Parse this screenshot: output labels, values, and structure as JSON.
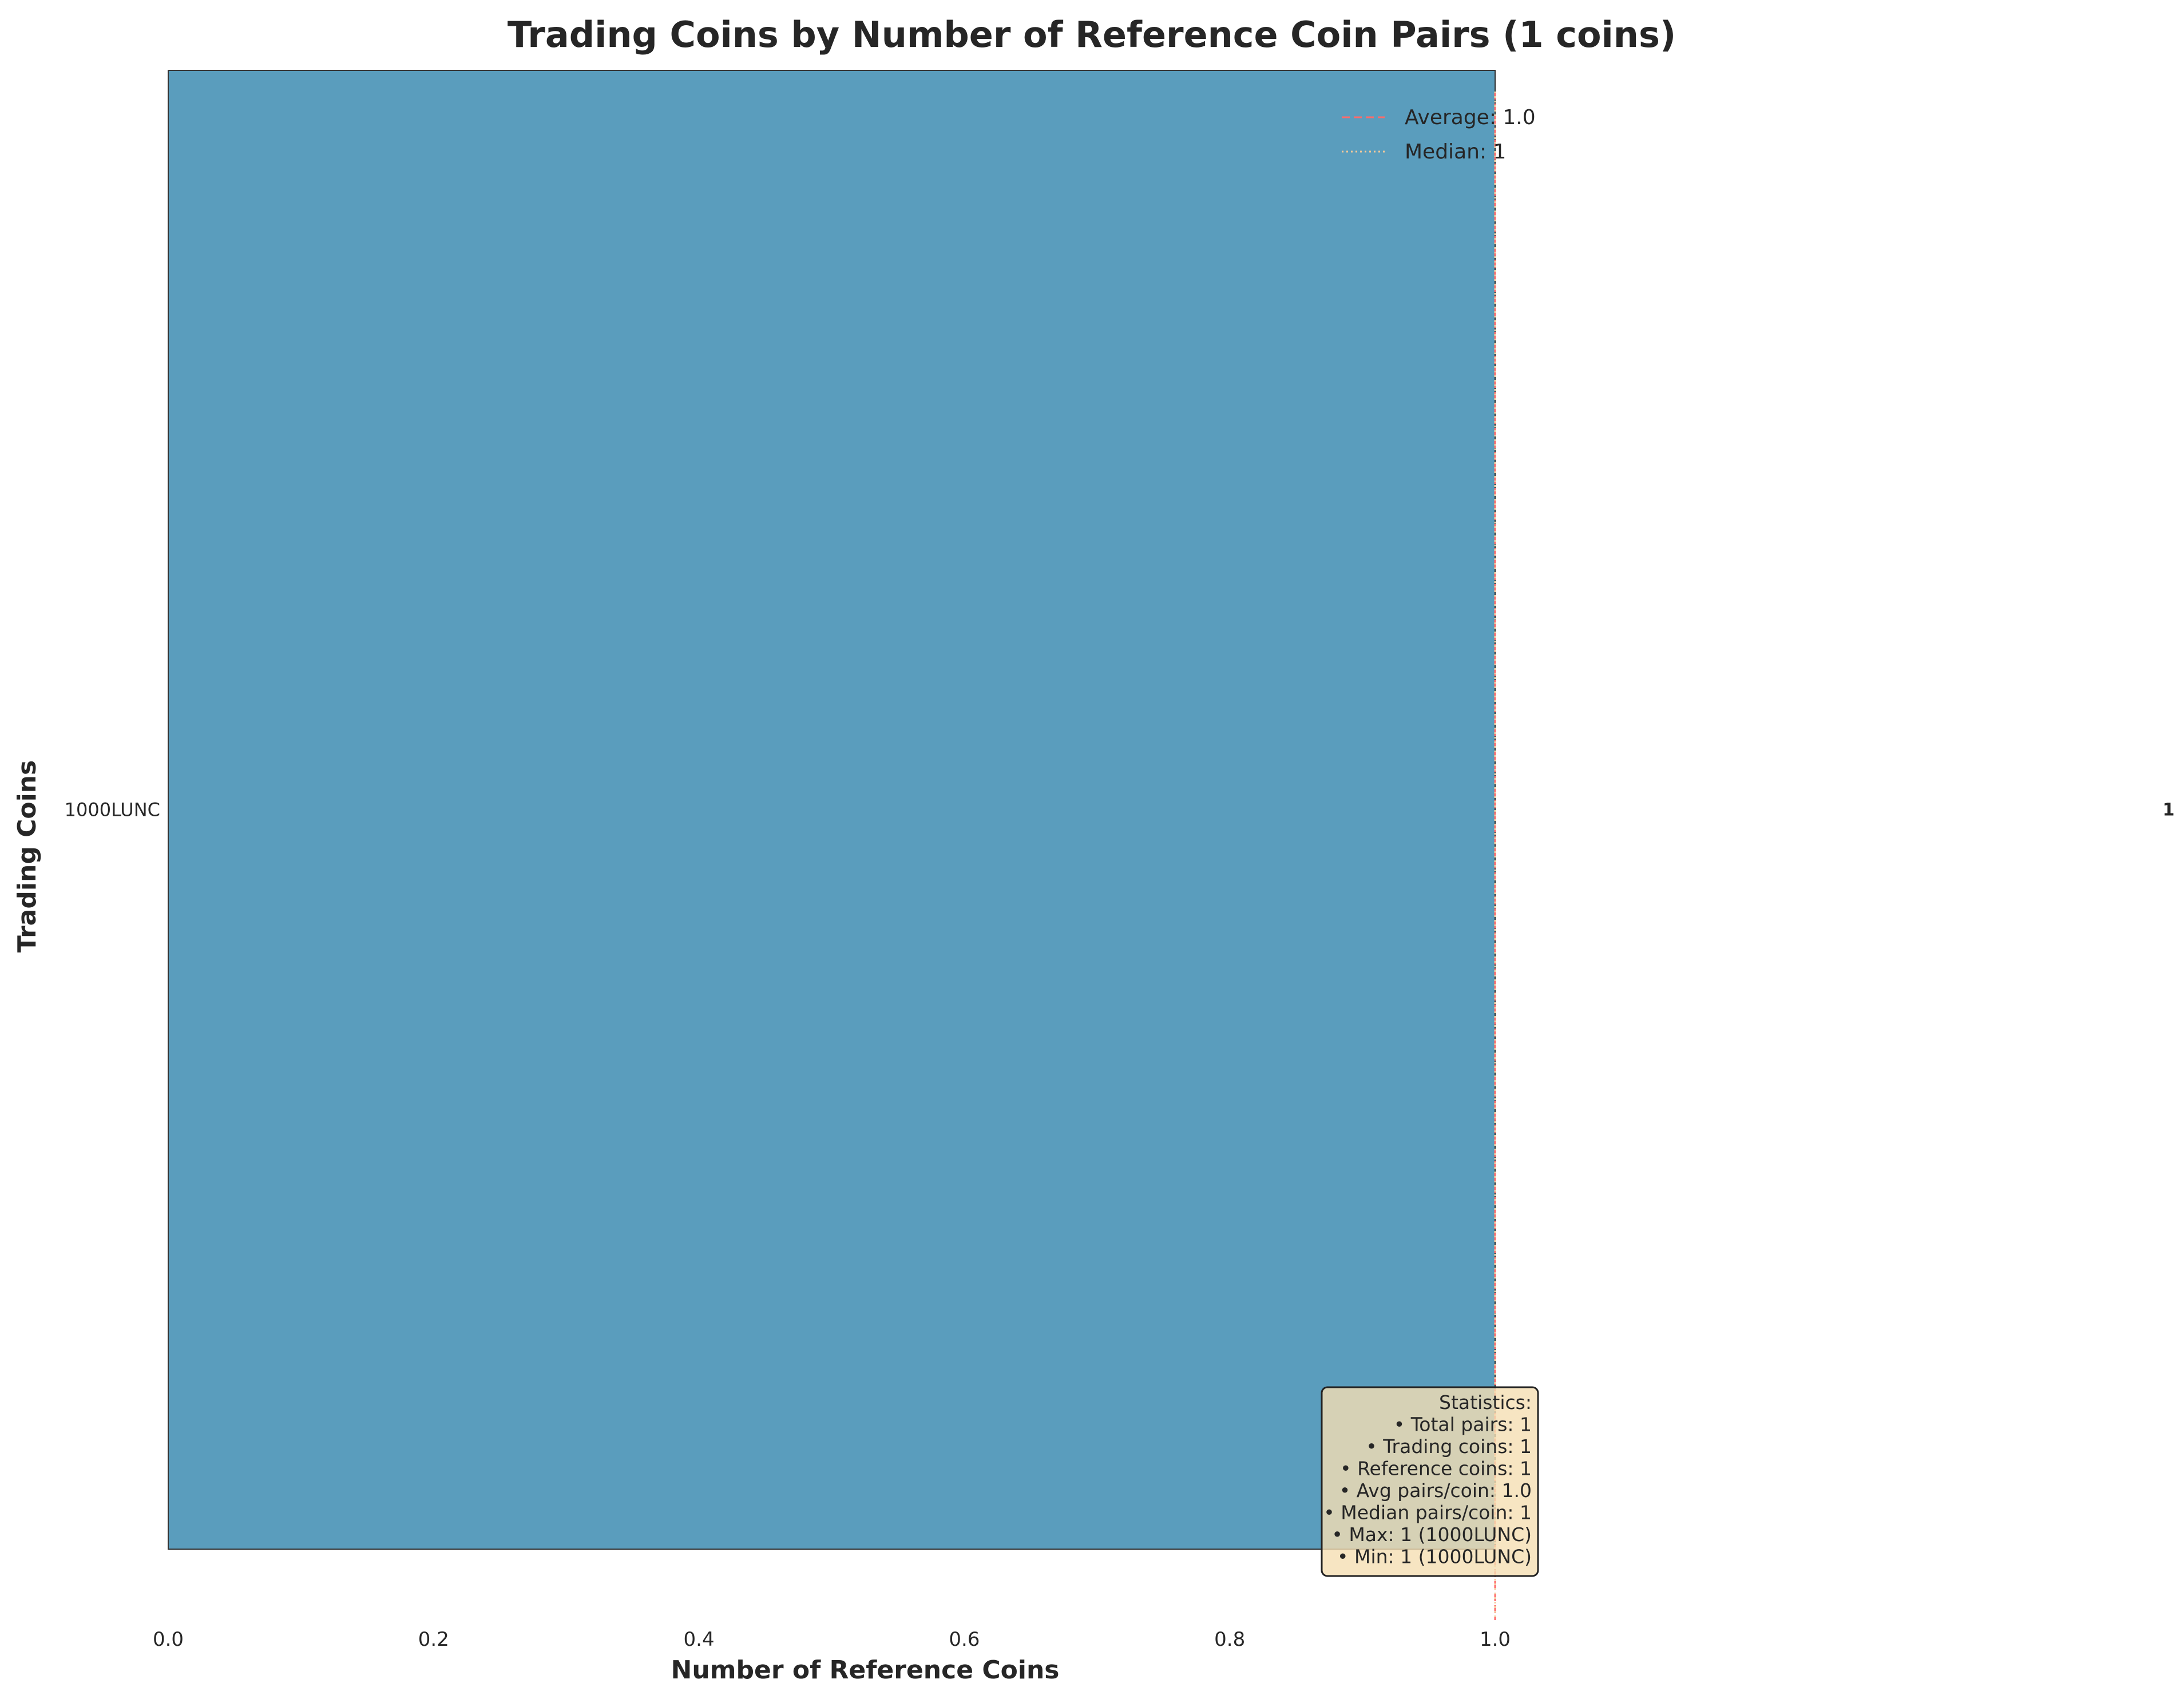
{
  "chart_data": {
    "type": "bar",
    "orientation": "horizontal",
    "title": "Trading Coins by Number of Reference Coin Pairs (1 coins)",
    "xlabel": "Number of Reference Coins",
    "ylabel": "Trading Coins",
    "categories": [
      "1000LUNC"
    ],
    "values": [
      1
    ],
    "value_labels": [
      "1"
    ],
    "xlim": [
      0,
      1.0
    ],
    "xticks": [
      {
        "value": 0.0,
        "label": "0.0"
      },
      {
        "value": 0.2,
        "label": "0.2"
      },
      {
        "value": 0.4,
        "label": "0.4"
      },
      {
        "value": 0.6,
        "label": "0.6"
      },
      {
        "value": 0.8,
        "label": "0.8"
      },
      {
        "value": 1.0,
        "label": "1.0"
      }
    ],
    "grid": false,
    "bar_color": "#5a9dbd",
    "reference_lines": [
      {
        "label": "Average: 1.0",
        "value": 1.0,
        "style": "dashed",
        "color": "#ff6b6b"
      },
      {
        "label": "Median: 1",
        "value": 1,
        "style": "dotted",
        "color": "#f4c99a"
      }
    ],
    "legend": {
      "position": "top-right"
    },
    "stats_box": {
      "position": "bottom-right",
      "lines": [
        "Statistics:",
        "• Total pairs: 1",
        "• Trading coins: 1",
        "• Reference coins: 1",
        "• Avg pairs/coin: 1.0",
        "• Median pairs/coin: 1",
        "• Max: 1 (1000LUNC)",
        "• Min: 1 (1000LUNC)"
      ]
    }
  }
}
